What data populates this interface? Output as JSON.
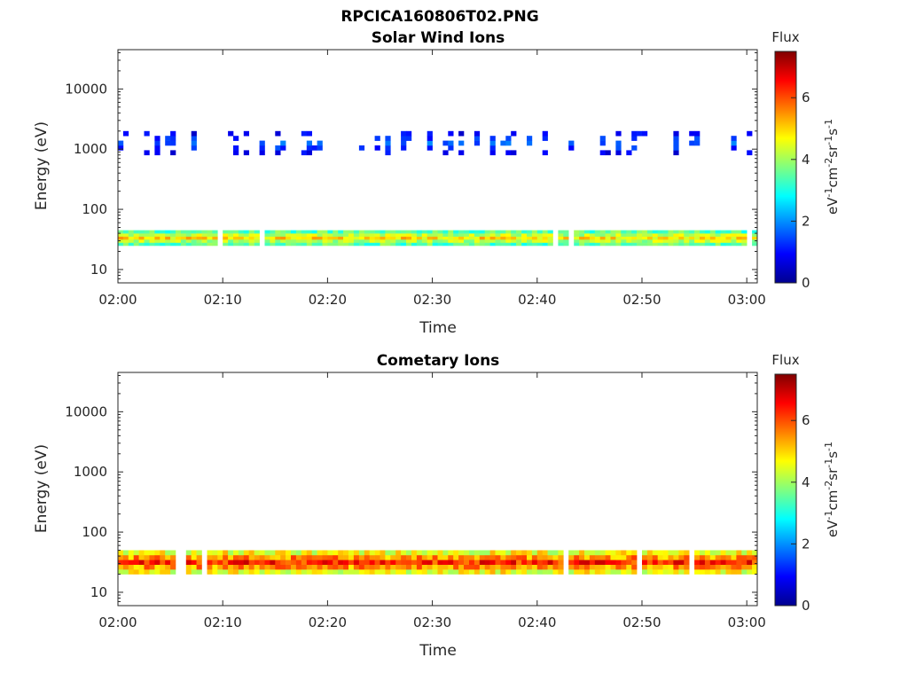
{
  "figure": {
    "title_line1": "RPCICA160806T02.PNG"
  },
  "chart_data": [
    {
      "type": "heatmap",
      "title": "Solar Wind Ions",
      "xlabel": "Time",
      "ylabel": "Energy (eV)",
      "x_ticks": [
        "02:00",
        "02:10",
        "02:20",
        "02:30",
        "02:40",
        "02:50",
        "03:00"
      ],
      "x_range_minutes": [
        0,
        61
      ],
      "y_scale": "log",
      "y_ticks": [
        10,
        100,
        1000,
        10000
      ],
      "y_tick_labels": [
        "10",
        "100",
        "1000",
        "10000"
      ],
      "y_range": [
        6,
        45000
      ],
      "colorbar": {
        "title": "Flux",
        "label": "eV-1cm-2sr-1s-1",
        "ticks": [
          0,
          2,
          4,
          6
        ],
        "range": [
          0,
          7.5
        ],
        "colormap": "jet"
      },
      "bands": [
        {
          "e_min": 25,
          "e_max": 45,
          "flux_range": [
            2.5,
            5.5
          ]
        },
        {
          "e_min": 800,
          "e_max": 2000,
          "flux_range": [
            0.3,
            2.0
          ]
        }
      ]
    },
    {
      "type": "heatmap",
      "title": "Cometary Ions",
      "xlabel": "Time",
      "ylabel": "Energy (eV)",
      "x_ticks": [
        "02:00",
        "02:10",
        "02:20",
        "02:30",
        "02:40",
        "02:50",
        "03:00"
      ],
      "x_range_minutes": [
        0,
        61
      ],
      "y_scale": "log",
      "y_ticks": [
        10,
        100,
        1000,
        10000
      ],
      "y_tick_labels": [
        "10",
        "100",
        "1000",
        "10000"
      ],
      "y_range": [
        6,
        45000
      ],
      "colorbar": {
        "title": "Flux",
        "label": "eV-1cm-2sr-1s-1",
        "ticks": [
          0,
          2,
          4,
          6
        ],
        "range": [
          0,
          7.5
        ],
        "colormap": "jet"
      },
      "bands": [
        {
          "e_min": 20,
          "e_max": 50,
          "flux_range": [
            3.5,
            7.0
          ]
        }
      ]
    }
  ]
}
